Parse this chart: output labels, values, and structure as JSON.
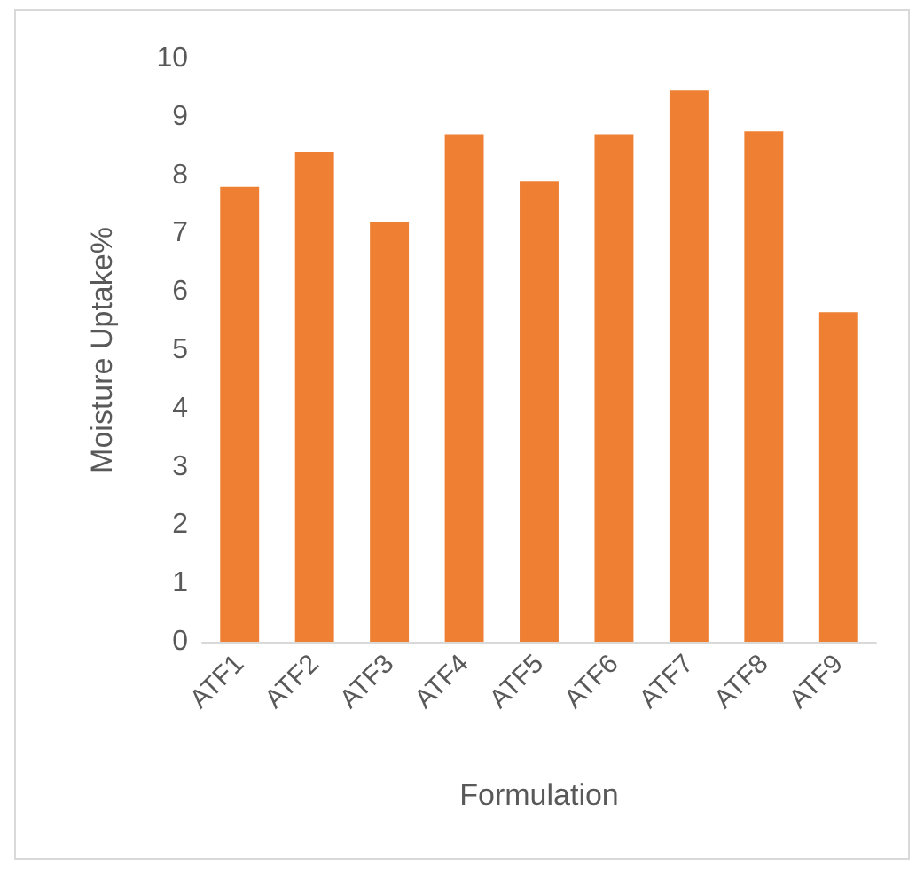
{
  "chart_data": {
    "type": "bar",
    "xlabel": "Formulation",
    "ylabel": "Moisture Uptake%",
    "categories": [
      "ATF1",
      "ATF2",
      "ATF3",
      "ATF4",
      "ATF5",
      "ATF6",
      "ATF7",
      "ATF8",
      "ATF9"
    ],
    "values": [
      7.8,
      8.4,
      7.2,
      8.7,
      7.9,
      8.7,
      9.45,
      8.75,
      5.65
    ],
    "color": "#ee7f33",
    "ylim": [
      0,
      10
    ],
    "yticks": [
      0,
      1,
      2,
      3,
      4,
      5,
      6,
      7,
      8,
      9,
      10
    ],
    "grid": false
  }
}
